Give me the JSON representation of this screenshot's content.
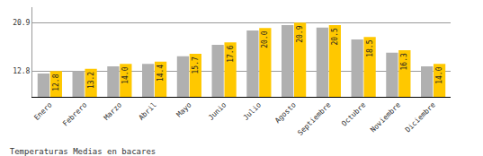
{
  "chart_data": {
    "type": "bar",
    "title": "Temperaturas Medias en bacares",
    "categories": [
      "Enero",
      "Febrero",
      "Marzo",
      "Abril",
      "Mayo",
      "Junio",
      "Julio",
      "Agosto",
      "Septiembre",
      "Octubre",
      "Noviembre",
      "Diciembre"
    ],
    "series": [
      {
        "color": "#B0B0B0",
        "values": [
          12.4,
          12.8,
          13.6,
          14.0,
          15.3,
          17.2,
          19.6,
          20.5,
          20.1,
          18.1,
          15.9,
          13.6
        ]
      },
      {
        "color": "#FFC800",
        "values": [
          12.8,
          13.2,
          14.0,
          14.4,
          15.7,
          17.6,
          20.0,
          20.9,
          20.5,
          18.5,
          16.3,
          14.0
        ],
        "value_labels": [
          "12.8",
          "13.2",
          "14.0",
          "14.4",
          "15.7",
          "17.6",
          "20.0",
          "20.9",
          "20.5",
          "18.5",
          "16.3",
          "14.0"
        ]
      }
    ],
    "ylim": [
      8.5,
      23.5
    ],
    "yticks": [
      12.8,
      20.9
    ],
    "y2lim": [
      8.5,
      23.5
    ],
    "y2ticks": [
      12.8,
      20.9
    ],
    "grid": true,
    "data_labels": true
  }
}
